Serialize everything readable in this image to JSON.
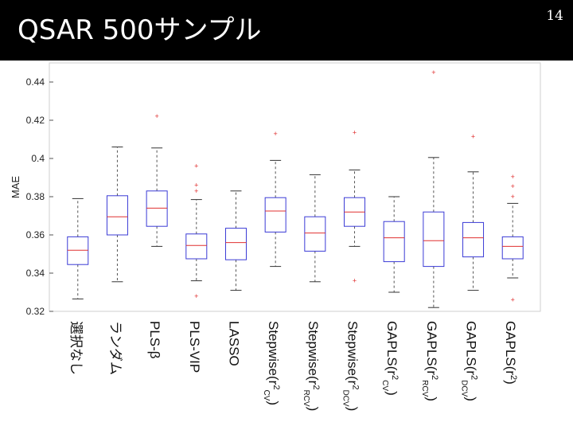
{
  "slide": {
    "title": "QSAR 500サンプル",
    "number": "14"
  },
  "colors": {
    "box": "#3b3bd6",
    "median": "#e03030",
    "whisker": "#555555",
    "outlier": "#e03030",
    "title_bg": "#000000",
    "title_fg": "#ffffff"
  },
  "chart_data": {
    "type": "box",
    "title": "",
    "xlabel": "",
    "ylabel": "MAE",
    "ylim": [
      0.32,
      0.45
    ],
    "yticks": [
      0.32,
      0.34,
      0.36,
      0.38,
      0.4,
      0.42,
      0.44
    ],
    "ytick_labels": [
      "0.32",
      "0.34",
      "0.36",
      "0.38",
      "0.4",
      "0.42",
      "0.44"
    ],
    "grid": false,
    "categories": [
      {
        "label": "選択なし"
      },
      {
        "label": "ランダム"
      },
      {
        "label": "PLS-β"
      },
      {
        "label": "PLS-VIP"
      },
      {
        "label": "LASSO"
      },
      {
        "label": "Stepwise(r",
        "sup": "2",
        "sub": "CV",
        "close": ")"
      },
      {
        "label": "Stepwise(r",
        "sup": "2",
        "sub": "RCV",
        "close": ")"
      },
      {
        "label": "Stepwise(r",
        "sup": "2",
        "sub": "DCV",
        "close": ")"
      },
      {
        "label": "GAPLS(r",
        "sup": "2",
        "sub": "CV",
        "close": ")"
      },
      {
        "label": "GAPLS(r",
        "sup": "2",
        "sub": "RCV",
        "close": ")"
      },
      {
        "label": "GAPLS(r",
        "sup": "2",
        "sub": "DCV",
        "close": ")"
      },
      {
        "label": "GAPLS(r",
        "sup": "2",
        "sub": "",
        "close": ")"
      }
    ],
    "boxes": [
      {
        "whislo": 0.3265,
        "q1": 0.3445,
        "med": 0.352,
        "q3": 0.359,
        "whishi": 0.379,
        "fliers": []
      },
      {
        "whislo": 0.3355,
        "q1": 0.36,
        "med": 0.3695,
        "q3": 0.3805,
        "whishi": 0.406,
        "fliers": []
      },
      {
        "whislo": 0.354,
        "q1": 0.3645,
        "med": 0.374,
        "q3": 0.383,
        "whishi": 0.4055,
        "fliers": [
          0.422
        ]
      },
      {
        "whislo": 0.336,
        "q1": 0.3475,
        "med": 0.3545,
        "q3": 0.3605,
        "whishi": 0.3785,
        "fliers": [
          0.328,
          0.383,
          0.386,
          0.396
        ]
      },
      {
        "whislo": 0.331,
        "q1": 0.347,
        "med": 0.356,
        "q3": 0.3635,
        "whishi": 0.383,
        "fliers": []
      },
      {
        "whislo": 0.3435,
        "q1": 0.3615,
        "med": 0.3725,
        "q3": 0.3795,
        "whishi": 0.399,
        "fliers": [
          0.413
        ]
      },
      {
        "whislo": 0.3355,
        "q1": 0.3515,
        "med": 0.361,
        "q3": 0.3695,
        "whishi": 0.3915,
        "fliers": []
      },
      {
        "whislo": 0.354,
        "q1": 0.3645,
        "med": 0.372,
        "q3": 0.3795,
        "whishi": 0.394,
        "fliers": [
          0.336,
          0.4135
        ]
      },
      {
        "whislo": 0.33,
        "q1": 0.346,
        "med": 0.3585,
        "q3": 0.367,
        "whishi": 0.38,
        "fliers": []
      },
      {
        "whislo": 0.322,
        "q1": 0.3435,
        "med": 0.357,
        "q3": 0.372,
        "whishi": 0.4005,
        "fliers": [
          0.445
        ]
      },
      {
        "whislo": 0.331,
        "q1": 0.3485,
        "med": 0.3585,
        "q3": 0.3665,
        "whishi": 0.393,
        "fliers": [
          0.4115
        ]
      },
      {
        "whislo": 0.3375,
        "q1": 0.3475,
        "med": 0.354,
        "q3": 0.359,
        "whishi": 0.3765,
        "fliers": [
          0.38,
          0.3855,
          0.3905,
          0.326
        ]
      }
    ]
  }
}
